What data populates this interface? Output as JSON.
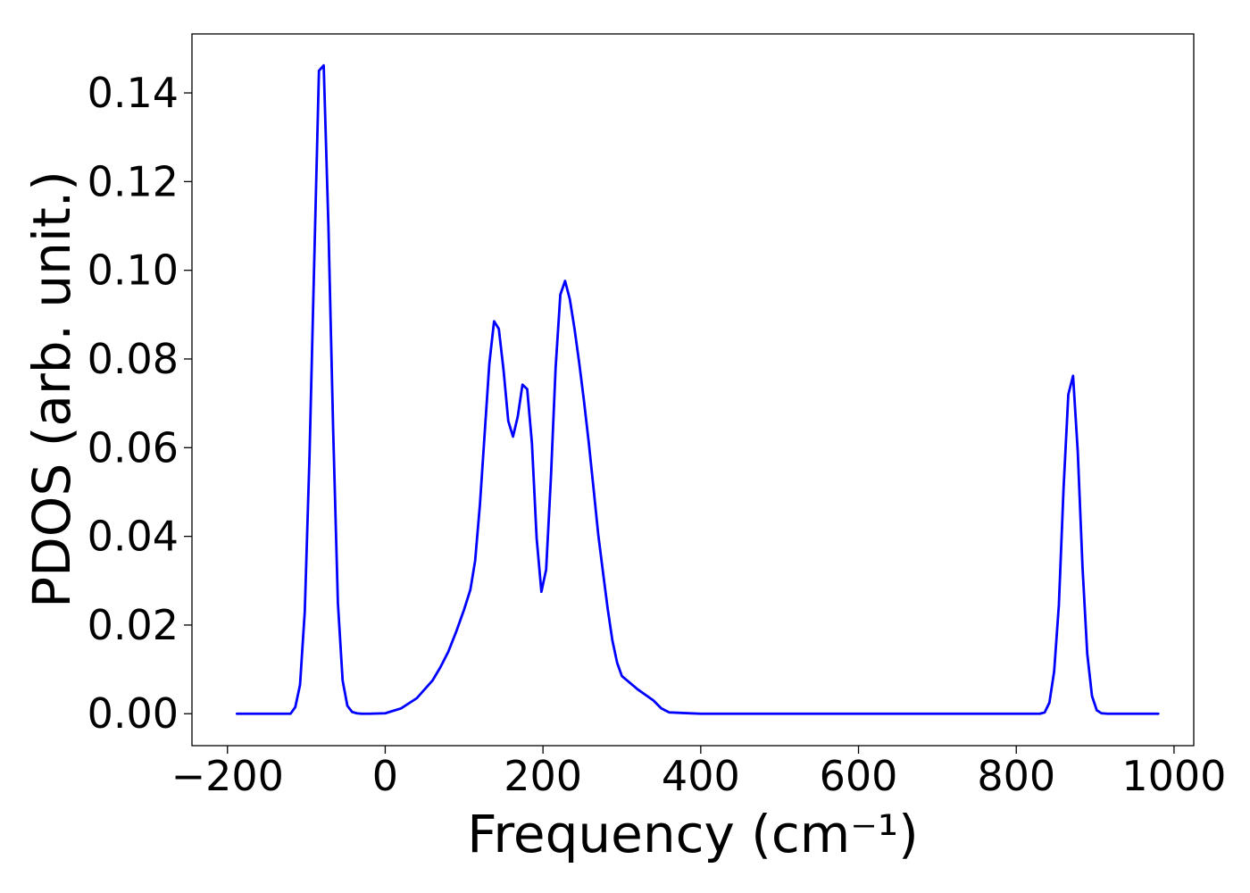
{
  "chart_data": {
    "type": "line",
    "xlabel": "Frequency (cm⁻¹)",
    "ylabel": "PDOS (arb. unit.)",
    "xlim": [
      -245,
      1025
    ],
    "ylim": [
      -0.0072,
      0.1533
    ],
    "xticks": [
      -200,
      0,
      200,
      400,
      600,
      800,
      1000
    ],
    "xtick_labels": [
      "−200",
      "0",
      "200",
      "400",
      "600",
      "800",
      "1000"
    ],
    "yticks": [
      0.0,
      0.02,
      0.04,
      0.06,
      0.08,
      0.1,
      0.12,
      0.14
    ],
    "ytick_labels": [
      "0.00",
      "0.02",
      "0.04",
      "0.06",
      "0.08",
      "0.10",
      "0.12",
      "0.14"
    ],
    "grid": false,
    "series": [
      {
        "color": "#0000ff",
        "x": [
          -188,
          -120,
          -114,
          -108,
          -102,
          -96,
          -90,
          -84,
          -78,
          -72,
          -66,
          -60,
          -54,
          -48,
          -42,
          -36,
          -30,
          -20,
          0,
          20,
          40,
          60,
          70,
          80,
          90,
          100,
          108,
          114,
          120,
          126,
          132,
          138,
          144,
          150,
          156,
          162,
          168,
          174,
          180,
          186,
          192,
          198,
          204,
          210,
          216,
          222,
          228,
          234,
          240,
          246,
          252,
          258,
          264,
          270,
          276,
          282,
          288,
          294,
          300,
          320,
          340,
          350,
          360,
          400,
          600,
          800,
          830,
          836,
          842,
          848,
          854,
          860,
          866,
          872,
          878,
          884,
          890,
          896,
          902,
          908,
          916,
          980
        ],
        "values": [
          0.0,
          0.0,
          0.0015,
          0.0065,
          0.023,
          0.058,
          0.102,
          0.145,
          0.1462,
          0.11,
          0.064,
          0.025,
          0.0075,
          0.0018,
          0.0004,
          0.0001,
          0.0,
          0.0,
          0.0001,
          0.0012,
          0.0035,
          0.0075,
          0.0105,
          0.014,
          0.0185,
          0.0235,
          0.028,
          0.0345,
          0.047,
          0.063,
          0.079,
          0.0885,
          0.0868,
          0.0775,
          0.066,
          0.0625,
          0.067,
          0.0742,
          0.0732,
          0.061,
          0.0395,
          0.0275,
          0.0325,
          0.053,
          0.078,
          0.0945,
          0.0976,
          0.0935,
          0.0868,
          0.079,
          0.0705,
          0.0612,
          0.051,
          0.0405,
          0.032,
          0.0237,
          0.0165,
          0.0115,
          0.0085,
          0.0055,
          0.003,
          0.0012,
          0.0003,
          0.0,
          0.0,
          0.0,
          0.0,
          0.0003,
          0.0025,
          0.0095,
          0.0245,
          0.051,
          0.072,
          0.0762,
          0.059,
          0.033,
          0.0135,
          0.004,
          0.0008,
          0.0001,
          0.0,
          0.0
        ]
      }
    ]
  }
}
